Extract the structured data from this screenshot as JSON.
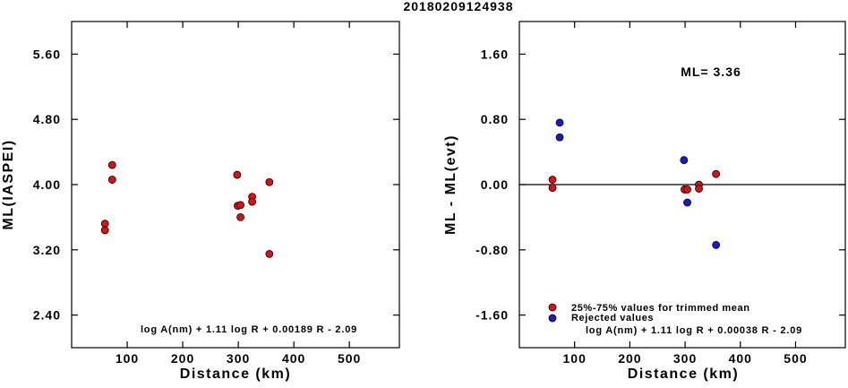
{
  "title": "20180209124938",
  "left": {
    "ylabel": "ML(IASPEI)",
    "xlabel": "Distance (km)",
    "formula": "log A(nm) + 1.11 log R + 0.00189 R - 2.09"
  },
  "right": {
    "ylabel": "ML - ML(evt)",
    "xlabel": "Distance (km)",
    "formula": "log A(nm) + 1.11 log R + 0.00038 R - 2.09",
    "ml_text": "ML= 3.36",
    "legend": {
      "trimmed": "25%-75% values for trimmed mean",
      "rejected": "Rejected values"
    }
  },
  "colors": {
    "trimmed": "#dd1111",
    "rejected": "#1a1acc"
  },
  "chart_data": [
    {
      "type": "scatter",
      "xlabel": "Distance (km)",
      "ylabel": "ML(IASPEI)",
      "xlim": [
        0,
        590
      ],
      "ylim": [
        2.0,
        6.0
      ],
      "xticks": [
        100,
        200,
        300,
        400,
        500
      ],
      "yticks": [
        2.4,
        3.2,
        4.0,
        4.8,
        5.6
      ],
      "ytick_labels": [
        "2.40",
        "3.20",
        "4.00",
        "4.80",
        "5.60"
      ],
      "points": [
        {
          "x": 60,
          "y": 3.52
        },
        {
          "x": 60,
          "y": 3.44
        },
        {
          "x": 73,
          "y": 4.24
        },
        {
          "x": 73,
          "y": 4.06
        },
        {
          "x": 298,
          "y": 4.12
        },
        {
          "x": 299,
          "y": 3.74
        },
        {
          "x": 304,
          "y": 3.75
        },
        {
          "x": 304,
          "y": 3.6
        },
        {
          "x": 325,
          "y": 3.85
        },
        {
          "x": 325,
          "y": 3.79
        },
        {
          "x": 356,
          "y": 4.03
        },
        {
          "x": 356,
          "y": 3.15
        }
      ]
    },
    {
      "type": "scatter",
      "xlabel": "Distance (km)",
      "ylabel": "ML - ML(evt)",
      "xlim": [
        0,
        590
      ],
      "ylim": [
        -2.0,
        2.0
      ],
      "xticks": [
        100,
        200,
        300,
        400,
        500
      ],
      "yticks": [
        -1.6,
        -0.8,
        0.0,
        0.8,
        1.6
      ],
      "ytick_labels": [
        "-1.60",
        "-0.80",
        "0.00",
        "0.80",
        "1.60"
      ],
      "hline": 0.0,
      "series": [
        {
          "name": "25%-75% values for trimmed mean",
          "points": [
            {
              "x": 60,
              "y": 0.06
            },
            {
              "x": 60,
              "y": -0.04
            },
            {
              "x": 299,
              "y": -0.06
            },
            {
              "x": 304,
              "y": -0.06
            },
            {
              "x": 325,
              "y": 0.0
            },
            {
              "x": 325,
              "y": -0.05
            },
            {
              "x": 356,
              "y": 0.13
            }
          ]
        },
        {
          "name": "Rejected values",
          "points": [
            {
              "x": 73,
              "y": 0.76
            },
            {
              "x": 73,
              "y": 0.58
            },
            {
              "x": 298,
              "y": 0.3
            },
            {
              "x": 304,
              "y": -0.22
            },
            {
              "x": 356,
              "y": -0.74
            }
          ]
        }
      ]
    }
  ]
}
